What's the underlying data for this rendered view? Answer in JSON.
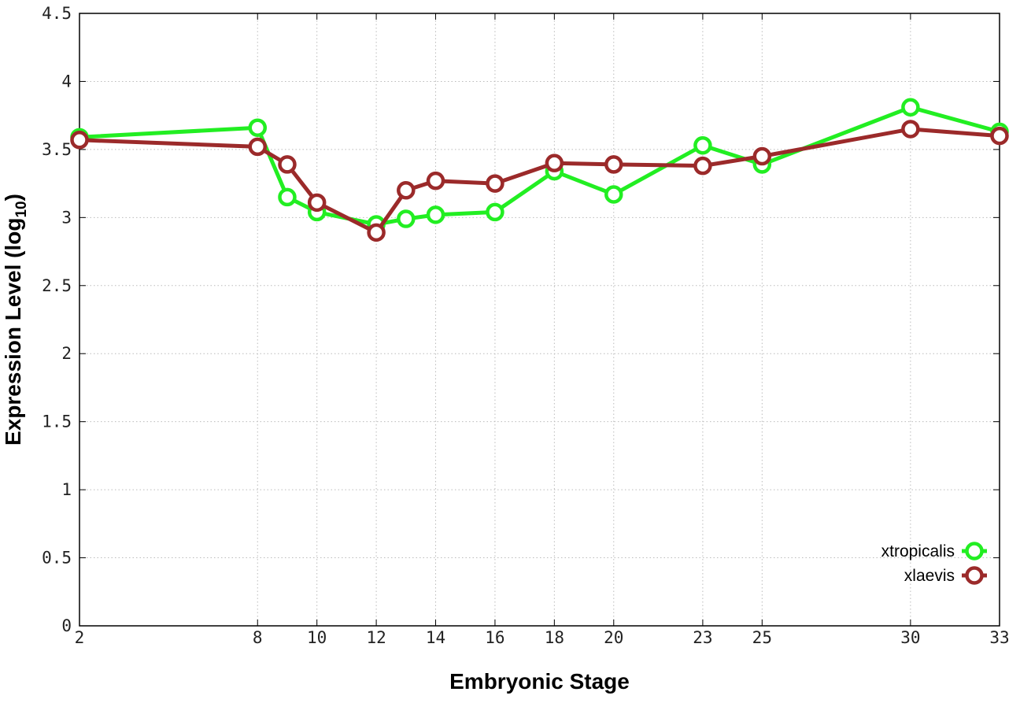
{
  "chart_data": {
    "type": "line",
    "xlabel": "Embryonic Stage",
    "ylabel": "Expression Level (log",
    "ylabel_subscript": "10",
    "ylabel_suffix": ")",
    "xlim": [
      2,
      33
    ],
    "ylim": [
      0,
      4.5
    ],
    "x_ticks": [
      2,
      8,
      10,
      12,
      14,
      16,
      18,
      20,
      23,
      25,
      30,
      33
    ],
    "y_ticks": [
      0,
      0.5,
      1,
      1.5,
      2,
      2.5,
      3,
      3.5,
      4,
      4.5
    ],
    "y_tick_labels": [
      "0",
      "0.5",
      "1",
      "1.5",
      "2",
      "2.5",
      "3",
      "3.5",
      "4",
      "4.5"
    ],
    "grid": true,
    "legend_position": "bottom-right",
    "x": [
      2,
      8,
      9,
      10,
      12,
      13,
      14,
      16,
      18,
      20,
      23,
      25,
      30,
      33
    ],
    "series": [
      {
        "name": "xtropicalis",
        "color": "#22ee22",
        "values": [
          3.59,
          3.66,
          3.15,
          3.04,
          2.95,
          2.99,
          3.02,
          3.04,
          3.34,
          3.17,
          3.53,
          3.39,
          3.81,
          3.63
        ]
      },
      {
        "name": "xlaevis",
        "color": "#9b2a2a",
        "values": [
          3.57,
          3.52,
          3.39,
          3.11,
          2.89,
          3.2,
          3.27,
          3.25,
          3.4,
          3.39,
          3.38,
          3.45,
          3.65,
          3.6
        ]
      }
    ]
  }
}
